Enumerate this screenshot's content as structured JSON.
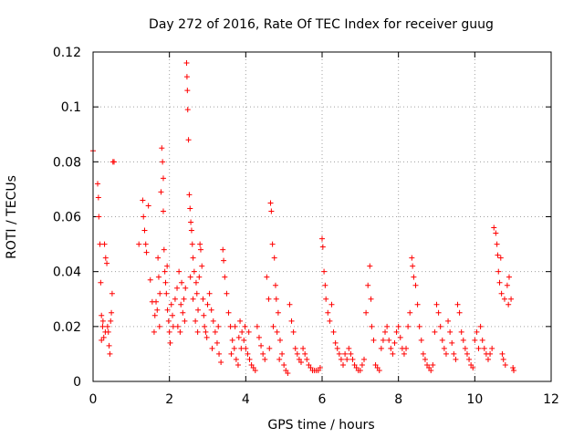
{
  "chart_data": {
    "type": "scatter",
    "title": "Day 272 of 2016, Rate Of TEC Index for receiver guug",
    "xlabel": "GPS time / hours",
    "ylabel": "ROTI / TECUs",
    "xlim": [
      0,
      12
    ],
    "ylim": [
      0,
      0.12
    ],
    "xticks": [
      0,
      2,
      4,
      6,
      8,
      10,
      12
    ],
    "xtick_labels": [
      "0",
      "2",
      "4",
      "6",
      "8",
      "10",
      "12"
    ],
    "yticks": [
      0,
      0.02,
      0.04,
      0.06,
      0.08,
      0.1,
      0.12
    ],
    "ytick_labels": [
      "0",
      "0.02",
      "0.04",
      "0.06",
      "0.08",
      "0.1",
      "0.12"
    ],
    "grid": true,
    "marker": "plus",
    "marker_color": "#ff0000",
    "series": [
      {
        "name": "ROTI",
        "points": [
          [
            0.0,
            0.084
          ],
          [
            0.12,
            0.072
          ],
          [
            0.14,
            0.067
          ],
          [
            0.15,
            0.06
          ],
          [
            0.18,
            0.05
          ],
          [
            0.2,
            0.036
          ],
          [
            0.22,
            0.024
          ],
          [
            0.25,
            0.02
          ],
          [
            0.28,
            0.016
          ],
          [
            0.3,
            0.05
          ],
          [
            0.33,
            0.045
          ],
          [
            0.36,
            0.043
          ],
          [
            0.38,
            0.02
          ],
          [
            0.4,
            0.018
          ],
          [
            0.42,
            0.013
          ],
          [
            0.44,
            0.01
          ],
          [
            0.46,
            0.022
          ],
          [
            0.48,
            0.025
          ],
          [
            0.5,
            0.032
          ],
          [
            0.52,
            0.08
          ],
          [
            0.55,
            0.08
          ],
          [
            0.22,
            0.015
          ],
          [
            0.26,
            0.022
          ],
          [
            0.32,
            0.018
          ],
          [
            1.2,
            0.05
          ],
          [
            1.3,
            0.066
          ],
          [
            1.32,
            0.06
          ],
          [
            1.35,
            0.055
          ],
          [
            1.38,
            0.05
          ],
          [
            1.4,
            0.047
          ],
          [
            1.45,
            0.064
          ],
          [
            1.5,
            0.037
          ],
          [
            1.55,
            0.029
          ],
          [
            1.6,
            0.018
          ],
          [
            1.62,
            0.024
          ],
          [
            1.65,
            0.029
          ],
          [
            1.7,
            0.045
          ],
          [
            1.72,
            0.038
          ],
          [
            1.75,
            0.032
          ],
          [
            1.78,
            0.069
          ],
          [
            1.8,
            0.085
          ],
          [
            1.82,
            0.08
          ],
          [
            1.84,
            0.062
          ],
          [
            1.86,
            0.048
          ],
          [
            1.88,
            0.04
          ],
          [
            1.9,
            0.036
          ],
          [
            1.92,
            0.032
          ],
          [
            1.95,
            0.026
          ],
          [
            1.98,
            0.022
          ],
          [
            2.0,
            0.018
          ],
          [
            2.02,
            0.014
          ],
          [
            2.05,
            0.028
          ],
          [
            2.08,
            0.024
          ],
          [
            2.1,
            0.02
          ],
          [
            1.68,
            0.026
          ],
          [
            1.74,
            0.02
          ],
          [
            1.84,
            0.074
          ],
          [
            1.94,
            0.042
          ],
          [
            2.15,
            0.03
          ],
          [
            2.2,
            0.034
          ],
          [
            2.25,
            0.04
          ],
          [
            2.3,
            0.028
          ],
          [
            2.35,
            0.025
          ],
          [
            2.4,
            0.022
          ],
          [
            2.45,
            0.116
          ],
          [
            2.46,
            0.111
          ],
          [
            2.47,
            0.106
          ],
          [
            2.48,
            0.099
          ],
          [
            2.5,
            0.088
          ],
          [
            2.52,
            0.068
          ],
          [
            2.54,
            0.063
          ],
          [
            2.56,
            0.058
          ],
          [
            2.58,
            0.055
          ],
          [
            2.6,
            0.05
          ],
          [
            2.62,
            0.045
          ],
          [
            2.65,
            0.04
          ],
          [
            2.7,
            0.036
          ],
          [
            2.72,
            0.032
          ],
          [
            2.75,
            0.026
          ],
          [
            2.78,
            0.038
          ],
          [
            2.8,
            0.05
          ],
          [
            2.82,
            0.048
          ],
          [
            2.85,
            0.042
          ],
          [
            2.88,
            0.03
          ],
          [
            2.9,
            0.024
          ],
          [
            2.92,
            0.02
          ],
          [
            2.95,
            0.018
          ],
          [
            2.98,
            0.016
          ],
          [
            2.22,
            0.02
          ],
          [
            2.28,
            0.018
          ],
          [
            2.32,
            0.036
          ],
          [
            2.38,
            0.03
          ],
          [
            2.42,
            0.034
          ],
          [
            2.55,
            0.038
          ],
          [
            2.62,
            0.03
          ],
          [
            2.68,
            0.022
          ],
          [
            2.74,
            0.018
          ],
          [
            3.0,
            0.028
          ],
          [
            3.05,
            0.032
          ],
          [
            3.1,
            0.026
          ],
          [
            3.15,
            0.022
          ],
          [
            3.2,
            0.018
          ],
          [
            3.25,
            0.014
          ],
          [
            3.3,
            0.01
          ],
          [
            3.35,
            0.007
          ],
          [
            3.4,
            0.048
          ],
          [
            3.42,
            0.044
          ],
          [
            3.45,
            0.038
          ],
          [
            3.5,
            0.032
          ],
          [
            3.55,
            0.025
          ],
          [
            3.6,
            0.02
          ],
          [
            3.65,
            0.015
          ],
          [
            3.7,
            0.012
          ],
          [
            3.75,
            0.008
          ],
          [
            3.8,
            0.006
          ],
          [
            3.85,
            0.022
          ],
          [
            3.9,
            0.018
          ],
          [
            3.95,
            0.015
          ],
          [
            4.0,
            0.012
          ],
          [
            4.05,
            0.01
          ],
          [
            4.1,
            0.008
          ],
          [
            4.15,
            0.006
          ],
          [
            4.2,
            0.005
          ],
          [
            4.25,
            0.004
          ],
          [
            3.12,
            0.012
          ],
          [
            3.28,
            0.02
          ],
          [
            3.62,
            0.01
          ],
          [
            3.72,
            0.02
          ],
          [
            3.82,
            0.016
          ],
          [
            3.88,
            0.012
          ],
          [
            3.98,
            0.02
          ],
          [
            4.08,
            0.018
          ],
          [
            4.3,
            0.02
          ],
          [
            4.35,
            0.016
          ],
          [
            4.4,
            0.013
          ],
          [
            4.45,
            0.01
          ],
          [
            4.5,
            0.008
          ],
          [
            4.55,
            0.038
          ],
          [
            4.6,
            0.03
          ],
          [
            4.65,
            0.065
          ],
          [
            4.67,
            0.062
          ],
          [
            4.7,
            0.05
          ],
          [
            4.75,
            0.045
          ],
          [
            4.78,
            0.035
          ],
          [
            4.8,
            0.03
          ],
          [
            4.85,
            0.025
          ],
          [
            4.9,
            0.015
          ],
          [
            4.95,
            0.01
          ],
          [
            5.0,
            0.006
          ],
          [
            5.05,
            0.004
          ],
          [
            5.1,
            0.003
          ],
          [
            4.62,
            0.012
          ],
          [
            4.72,
            0.02
          ],
          [
            4.82,
            0.018
          ],
          [
            4.88,
            0.008
          ],
          [
            5.15,
            0.028
          ],
          [
            5.2,
            0.022
          ],
          [
            5.25,
            0.018
          ],
          [
            5.3,
            0.012
          ],
          [
            5.35,
            0.01
          ],
          [
            5.4,
            0.008
          ],
          [
            5.45,
            0.007
          ],
          [
            5.5,
            0.012
          ],
          [
            5.55,
            0.01
          ],
          [
            5.6,
            0.008
          ],
          [
            5.65,
            0.006
          ],
          [
            5.7,
            0.005
          ],
          [
            5.75,
            0.004
          ],
          [
            5.8,
            0.004
          ],
          [
            5.85,
            0.004
          ],
          [
            5.9,
            0.004
          ],
          [
            5.95,
            0.005
          ],
          [
            6.0,
            0.052
          ],
          [
            6.02,
            0.049
          ],
          [
            6.05,
            0.04
          ],
          [
            6.08,
            0.035
          ],
          [
            6.1,
            0.03
          ],
          [
            6.15,
            0.025
          ],
          [
            6.2,
            0.022
          ],
          [
            6.25,
            0.028
          ],
          [
            6.3,
            0.018
          ],
          [
            6.35,
            0.014
          ],
          [
            6.4,
            0.012
          ],
          [
            6.45,
            0.01
          ],
          [
            6.5,
            0.008
          ],
          [
            6.55,
            0.006
          ],
          [
            6.6,
            0.01
          ],
          [
            6.65,
            0.008
          ],
          [
            6.7,
            0.012
          ],
          [
            6.75,
            0.01
          ],
          [
            6.8,
            0.008
          ],
          [
            6.85,
            0.006
          ],
          [
            6.9,
            0.005
          ],
          [
            6.95,
            0.004
          ],
          [
            7.0,
            0.004
          ],
          [
            7.05,
            0.006
          ],
          [
            7.1,
            0.008
          ],
          [
            7.15,
            0.025
          ],
          [
            7.2,
            0.035
          ],
          [
            7.25,
            0.042
          ],
          [
            7.28,
            0.03
          ],
          [
            7.3,
            0.02
          ],
          [
            7.35,
            0.015
          ],
          [
            7.4,
            0.006
          ],
          [
            7.45,
            0.005
          ],
          [
            7.5,
            0.004
          ],
          [
            7.55,
            0.012
          ],
          [
            7.6,
            0.015
          ],
          [
            7.65,
            0.018
          ],
          [
            7.7,
            0.02
          ],
          [
            7.75,
            0.015
          ],
          [
            7.8,
            0.012
          ],
          [
            7.85,
            0.01
          ],
          [
            7.9,
            0.014
          ],
          [
            7.95,
            0.018
          ],
          [
            8.0,
            0.02
          ],
          [
            8.05,
            0.016
          ],
          [
            8.1,
            0.012
          ],
          [
            8.15,
            0.01
          ],
          [
            8.2,
            0.012
          ],
          [
            8.25,
            0.02
          ],
          [
            8.3,
            0.025
          ],
          [
            8.35,
            0.045
          ],
          [
            8.37,
            0.042
          ],
          [
            8.4,
            0.038
          ],
          [
            8.45,
            0.035
          ],
          [
            8.5,
            0.028
          ],
          [
            8.55,
            0.02
          ],
          [
            8.6,
            0.015
          ],
          [
            8.65,
            0.01
          ],
          [
            8.7,
            0.008
          ],
          [
            8.75,
            0.006
          ],
          [
            8.8,
            0.005
          ],
          [
            8.85,
            0.004
          ],
          [
            8.9,
            0.006
          ],
          [
            8.95,
            0.018
          ],
          [
            9.0,
            0.028
          ],
          [
            9.05,
            0.025
          ],
          [
            9.1,
            0.02
          ],
          [
            9.15,
            0.015
          ],
          [
            9.2,
            0.012
          ],
          [
            9.25,
            0.01
          ],
          [
            9.3,
            0.022
          ],
          [
            9.35,
            0.018
          ],
          [
            9.4,
            0.014
          ],
          [
            9.45,
            0.01
          ],
          [
            9.5,
            0.008
          ],
          [
            9.55,
            0.028
          ],
          [
            9.6,
            0.025
          ],
          [
            9.65,
            0.018
          ],
          [
            9.7,
            0.015
          ],
          [
            9.75,
            0.012
          ],
          [
            9.8,
            0.01
          ],
          [
            9.85,
            0.008
          ],
          [
            9.9,
            0.006
          ],
          [
            9.95,
            0.005
          ],
          [
            10.0,
            0.015
          ],
          [
            10.05,
            0.018
          ],
          [
            10.1,
            0.012
          ],
          [
            10.15,
            0.02
          ],
          [
            10.2,
            0.015
          ],
          [
            10.25,
            0.012
          ],
          [
            10.3,
            0.01
          ],
          [
            10.35,
            0.008
          ],
          [
            10.4,
            0.01
          ],
          [
            10.45,
            0.012
          ],
          [
            10.5,
            0.056
          ],
          [
            10.55,
            0.054
          ],
          [
            10.58,
            0.05
          ],
          [
            10.6,
            0.046
          ],
          [
            10.62,
            0.04
          ],
          [
            10.65,
            0.036
          ],
          [
            10.7,
            0.032
          ],
          [
            10.72,
            0.01
          ],
          [
            10.75,
            0.008
          ],
          [
            10.8,
            0.006
          ],
          [
            10.85,
            0.035
          ],
          [
            10.9,
            0.038
          ],
          [
            10.95,
            0.03
          ],
          [
            11.0,
            0.005
          ],
          [
            11.02,
            0.004
          ],
          [
            10.68,
            0.045
          ],
          [
            10.78,
            0.03
          ],
          [
            10.88,
            0.028
          ]
        ]
      }
    ]
  }
}
